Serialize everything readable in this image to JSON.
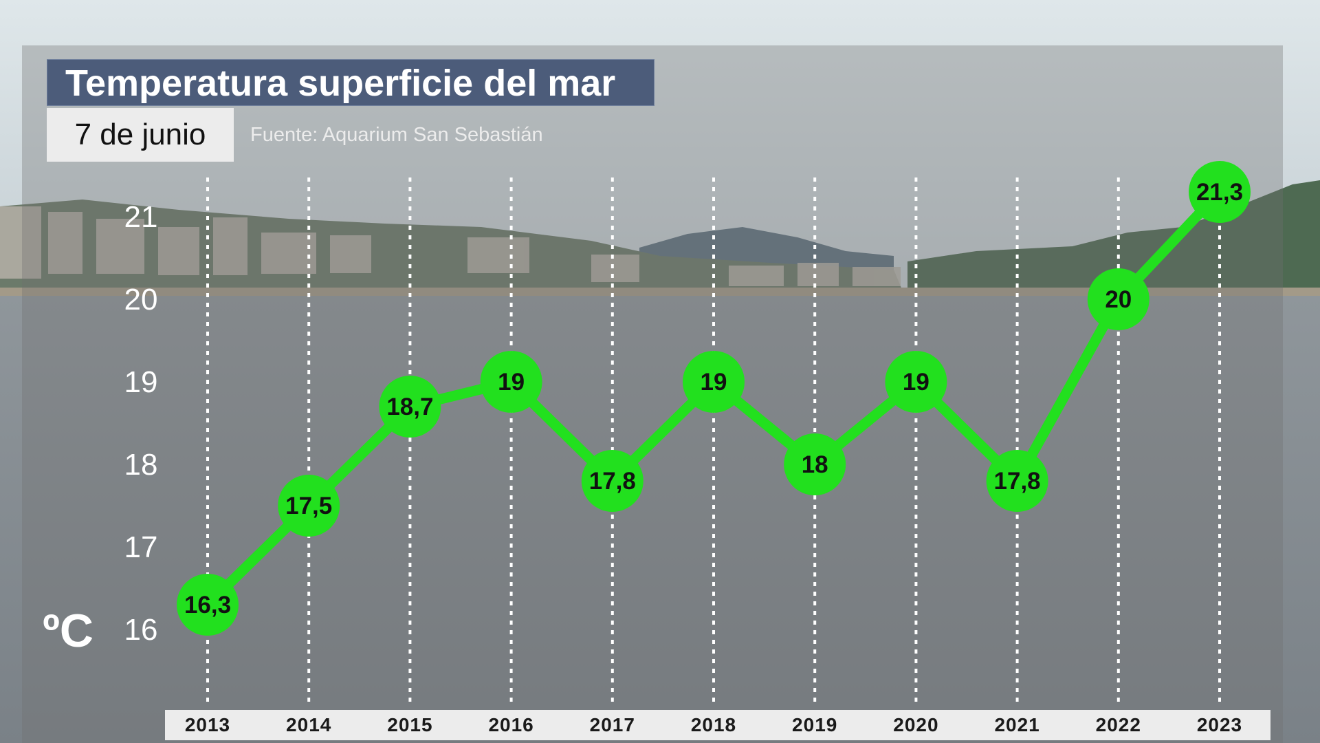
{
  "title": "Temperatura superficie del mar",
  "subtitle": "7 de junio",
  "source": "Fuente: Aquarium San Sebastián",
  "unit": "ºC",
  "colors": {
    "line": "#22e01e",
    "marker": "#22e01e",
    "title_bg": "#4c5c7a",
    "date_bg": "#ececec",
    "gridline": "#ffffff"
  },
  "chart_data": {
    "type": "line",
    "title": "Temperatura superficie del mar",
    "subtitle": "7 de junio",
    "ylabel": "ºC",
    "categories": [
      "2013",
      "2014",
      "2015",
      "2016",
      "2017",
      "2018",
      "2019",
      "2020",
      "2021",
      "2022",
      "2023"
    ],
    "values": [
      16.3,
      17.5,
      18.7,
      19,
      17.8,
      19,
      18,
      19,
      17.8,
      20,
      21.3
    ],
    "data_labels": [
      "16,3",
      "17,5",
      "18,7",
      "19",
      "17,8",
      "19",
      "18",
      "19",
      "17,8",
      "20",
      "21,3"
    ],
    "yticks": [
      16,
      17,
      18,
      19,
      20,
      21
    ],
    "ylim": [
      16,
      21.3
    ],
    "grid": "vertical dotted",
    "legend": "none"
  }
}
